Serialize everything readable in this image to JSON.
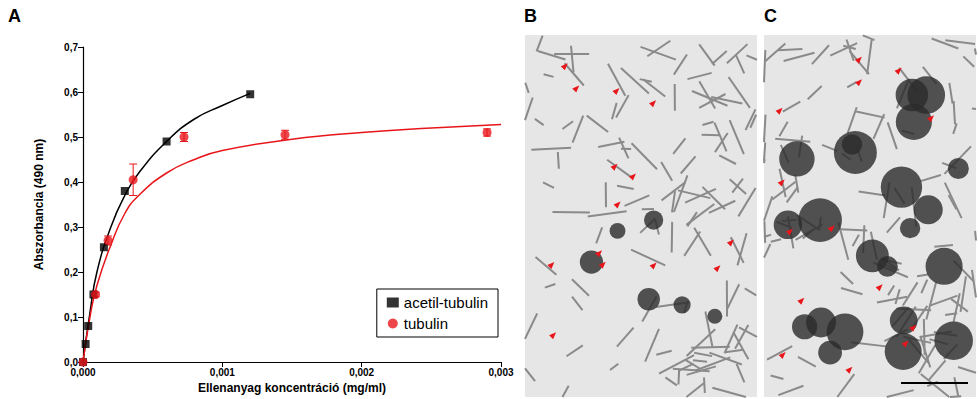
{
  "panel_labels": [
    "A",
    "B",
    "C"
  ],
  "chart_data": {
    "type": "scatter",
    "x_label": "Ellenanyag koncentráció (mg/ml)",
    "y_label": "Abszorbancia (490 nm)",
    "xlim": [
      0,
      0.003
    ],
    "xticks": [
      {
        "value": 0,
        "label": "0,000"
      },
      {
        "value": 0.001,
        "label": "0,001"
      },
      {
        "value": 0.002,
        "label": "0,002"
      },
      {
        "value": 0.003,
        "label": "0,003"
      }
    ],
    "ylim": [
      0,
      0.7
    ],
    "yticks": [
      {
        "value": 0,
        "label": "0,0"
      },
      {
        "value": 0.1,
        "label": "0,1"
      },
      {
        "value": 0.2,
        "label": "0,2"
      },
      {
        "value": 0.3,
        "label": "0,3"
      },
      {
        "value": 0.4,
        "label": "0,4"
      },
      {
        "value": 0.5,
        "label": "0,5"
      },
      {
        "value": 0.6,
        "label": "0,6"
      },
      {
        "value": 0.7,
        "label": "0,7"
      }
    ],
    "grid": false,
    "legend": "lower right",
    "series": [
      {
        "name": "acetil-tubulin",
        "color": "#000000",
        "marker": "square",
        "x": [
          0,
          1.875e-05,
          3.75e-05,
          7.5e-05,
          0.00015,
          0.0003,
          0.0006,
          0.0012
        ],
        "values": [
          0.0,
          0.04,
          0.08,
          0.15,
          0.255,
          0.38,
          0.49,
          0.595
        ],
        "fit": {
          "x": [
            0,
            5e-05,
            0.0001,
            0.0002,
            0.0003,
            0.0004,
            0.0006,
            0.0008,
            0.001,
            0.0012
          ],
          "values": [
            0,
            0.11,
            0.2,
            0.3,
            0.37,
            0.42,
            0.49,
            0.54,
            0.57,
            0.597
          ]
        }
      },
      {
        "name": "tubulin",
        "color": "#e8161b",
        "marker": "circle",
        "x": [
          0,
          9e-05,
          0.00018,
          0.00036,
          0.000725,
          0.00145,
          0.0029
        ],
        "values": [
          0.0,
          0.15,
          0.27,
          0.405,
          0.5,
          0.505,
          0.51
        ],
        "errors": [
          0,
          0.005,
          0.01,
          0.035,
          0.01,
          0.01,
          0.008
        ],
        "fit": {
          "x": [
            0,
            5e-05,
            0.0001,
            0.0002,
            0.0003,
            0.0004,
            0.0006,
            0.0008,
            0.001,
            0.0015,
            0.002,
            0.0025,
            0.003
          ],
          "values": [
            0,
            0.1,
            0.17,
            0.26,
            0.33,
            0.37,
            0.42,
            0.45,
            0.47,
            0.495,
            0.51,
            0.52,
            0.528
          ]
        }
      }
    ]
  }
}
